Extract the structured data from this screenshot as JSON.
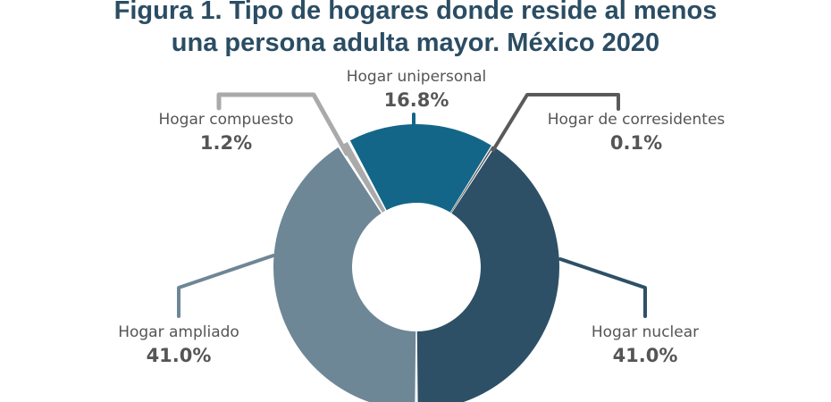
{
  "chart_data": {
    "type": "pie",
    "donut": true,
    "title_lines": [
      "Figura 1. Tipo de hogares donde reside al menos",
      "una persona adulta mayor. México 2020"
    ],
    "slices": [
      {
        "label": "Hogar nuclear",
        "value": 41.0,
        "display": "41.0%",
        "color": "#2d5067"
      },
      {
        "label": "Hogar ampliado",
        "value": 41.0,
        "display": "41.0%",
        "color": "#6e8796"
      },
      {
        "label": "Hogar compuesto",
        "value": 1.2,
        "display": "1.2%",
        "color": "#aaaaaa"
      },
      {
        "label": "Hogar unipersonal",
        "value": 16.8,
        "display": "16.8%",
        "color": "#146688"
      },
      {
        "label": "Hogar de corresidentes",
        "value": 0.1,
        "display": "0.1%",
        "color": "#5a5a5a"
      }
    ]
  }
}
